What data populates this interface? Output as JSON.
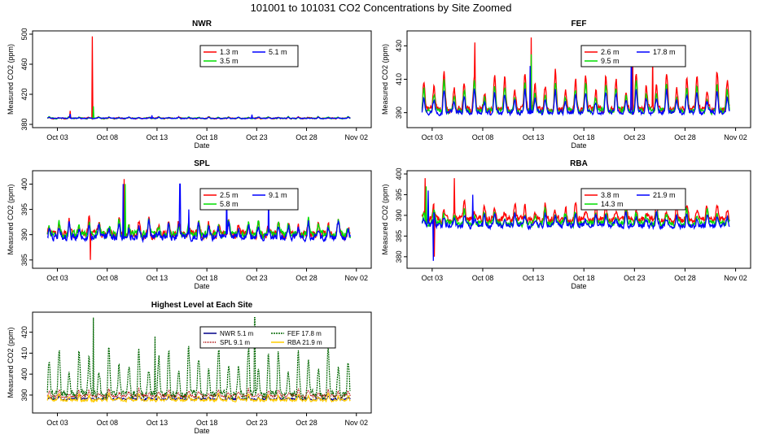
{
  "title": "101001  to  101031 CO2 Concentrations by Site Zoomed",
  "chart_data": [
    {
      "id": "nwr",
      "type": "line",
      "title": "NWR",
      "xlabel": "Date",
      "ylabel": "Measured CO2 (ppm)",
      "xlim": [
        0,
        33
      ],
      "ylim": [
        380,
        500
      ],
      "yticks": [
        380,
        420,
        460,
        500
      ],
      "xticks": [
        2,
        7,
        12,
        17,
        22,
        27,
        32
      ],
      "xtick_labels": [
        "Oct 03",
        "Oct 08",
        "Oct 13",
        "Oct 18",
        "Oct 23",
        "Oct 28",
        "Nov 02"
      ],
      "series": [
        {
          "name": "1.3 m",
          "color": "#ff0000",
          "base": 388,
          "amp": 2,
          "noise": 1.2,
          "spikes": [
            [
              5.5,
              497
            ],
            [
              3.3,
              398
            ]
          ]
        },
        {
          "name": "3.5 m",
          "color": "#00dd00",
          "base": 388,
          "amp": 2,
          "noise": 1.0,
          "spikes": [
            [
              5.6,
              404
            ]
          ]
        },
        {
          "name": "5.1 m",
          "color": "#0000ff",
          "base": 388,
          "amp": 1.5,
          "noise": 0.8,
          "spikes": [
            [
              3.3,
              394
            ],
            [
              11.5,
              392
            ],
            [
              21.5,
              393
            ]
          ]
        }
      ]
    },
    {
      "id": "fef",
      "type": "line",
      "title": "FEF",
      "xlabel": "Date",
      "ylabel": "Measured CO2 (ppm)",
      "xlim": [
        0,
        33
      ],
      "ylim": [
        383,
        437
      ],
      "yticks": [
        390,
        410,
        430
      ],
      "xticks": [
        2,
        7,
        12,
        17,
        22,
        27,
        32
      ],
      "xtick_labels": [
        "Oct 03",
        "Oct 08",
        "Oct 13",
        "Oct 18",
        "Oct 23",
        "Oct 28",
        "Nov 02"
      ],
      "series": [
        {
          "name": "2.6 m",
          "color": "#ff0000",
          "base": 392,
          "amp": 24,
          "noise": 3,
          "spikes": [
            [
              11.8,
              435
            ],
            [
              6.2,
              432
            ],
            [
              21.8,
              428
            ],
            [
              23.8,
              425
            ]
          ]
        },
        {
          "name": "9.5 m",
          "color": "#00dd00",
          "base": 391,
          "amp": 18,
          "noise": 2.5,
          "spikes": [
            [
              11.8,
              425
            ]
          ]
        },
        {
          "name": "17.8 m",
          "color": "#0000ff",
          "base": 390,
          "amp": 14,
          "noise": 2,
          "spikes": [
            [
              11.7,
              418
            ],
            [
              21.7,
              420
            ]
          ]
        }
      ]
    },
    {
      "id": "spl",
      "type": "line",
      "title": "SPL",
      "xlabel": "Date",
      "ylabel": "Measured CO2 (ppm)",
      "xlim": [
        0,
        33
      ],
      "ylim": [
        384,
        402
      ],
      "yticks": [
        385,
        390,
        395,
        400
      ],
      "xticks": [
        2,
        7,
        12,
        17,
        22,
        27,
        32
      ],
      "xtick_labels": [
        "Oct 03",
        "Oct 08",
        "Oct 13",
        "Oct 18",
        "Oct 23",
        "Oct 28",
        "Nov 02"
      ],
      "series": [
        {
          "name": "2.5 m",
          "color": "#ff0000",
          "base": 390,
          "amp": 3,
          "noise": 1.2,
          "spikes": [
            [
              8.7,
              401
            ],
            [
              5.3,
              385
            ]
          ]
        },
        {
          "name": "5.8 m",
          "color": "#00dd00",
          "base": 390,
          "amp": 3,
          "noise": 1.1,
          "spikes": [
            [
              8.8,
              400
            ]
          ]
        },
        {
          "name": "9.1 m",
          "color": "#0000ff",
          "base": 389.5,
          "amp": 3,
          "noise": 1.0,
          "spikes": [
            [
              8.6,
              400
            ],
            [
              14.3,
              400
            ],
            [
              19.0,
              399
            ],
            [
              23.2,
              398
            ],
            [
              15.2,
              395
            ]
          ]
        }
      ]
    },
    {
      "id": "rba",
      "type": "line",
      "title": "RBA",
      "xlabel": "Date",
      "ylabel": "Measured CO2 (ppm)",
      "xlim": [
        0,
        33
      ],
      "ylim": [
        378,
        400
      ],
      "yticks": [
        380,
        385,
        390,
        395,
        400
      ],
      "xticks": [
        2,
        7,
        12,
        17,
        22,
        27,
        32
      ],
      "xtick_labels": [
        "Oct 03",
        "Oct 08",
        "Oct 13",
        "Oct 18",
        "Oct 23",
        "Oct 28",
        "Nov 02"
      ],
      "series": [
        {
          "name": "3.8 m",
          "color": "#ff0000",
          "base": 389,
          "amp": 4,
          "noise": 1.3,
          "spikes": [
            [
              1.3,
              399
            ],
            [
              4.2,
              399
            ],
            [
              2.2,
              380
            ]
          ]
        },
        {
          "name": "14.3 m",
          "color": "#00dd00",
          "base": 388,
          "amp": 3.5,
          "noise": 1.2,
          "spikes": [
            [
              1.4,
              397
            ]
          ]
        },
        {
          "name": "21.9 m",
          "color": "#0000ff",
          "base": 387.5,
          "amp": 3,
          "noise": 1.0,
          "spikes": [
            [
              1.6,
              396
            ],
            [
              6.0,
              395
            ],
            [
              2.1,
              379
            ]
          ]
        }
      ]
    },
    {
      "id": "highest",
      "type": "line",
      "title": "Highest Level at Each Site",
      "xlabel": "Date",
      "ylabel": "Measured CO2 (ppm)",
      "xlim": [
        0,
        33
      ],
      "ylim": [
        383,
        428
      ],
      "yticks": [
        390,
        400,
        410,
        420
      ],
      "xticks": [
        2,
        7,
        12,
        17,
        22,
        27,
        32
      ],
      "xtick_labels": [
        "Oct 03",
        "Oct 08",
        "Oct 13",
        "Oct 18",
        "Oct 23",
        "Oct 28",
        "Nov 02"
      ],
      "series": [
        {
          "name": "NWR  5.1 m",
          "color": "#000088",
          "dash": "",
          "base": 388,
          "amp": 1.5,
          "noise": 0.7,
          "spikes": []
        },
        {
          "name": "FEF  17.8 m",
          "color": "#006600",
          "dash": "2,1",
          "base": 390,
          "amp": 24,
          "noise": 3,
          "spikes": [
            [
              5.6,
              427
            ],
            [
              21.8,
              427
            ],
            [
              11.8,
              418
            ]
          ]
        },
        {
          "name": "SPL  9.1 m",
          "color": "#aa0000",
          "dash": "1,1",
          "base": 389.5,
          "amp": 3,
          "noise": 1.0,
          "spikes": []
        },
        {
          "name": "RBA  21.9 m",
          "color": "#ffcc00",
          "dash": "",
          "base": 387.5,
          "amp": 3,
          "noise": 1.0,
          "spikes": []
        }
      ]
    }
  ]
}
